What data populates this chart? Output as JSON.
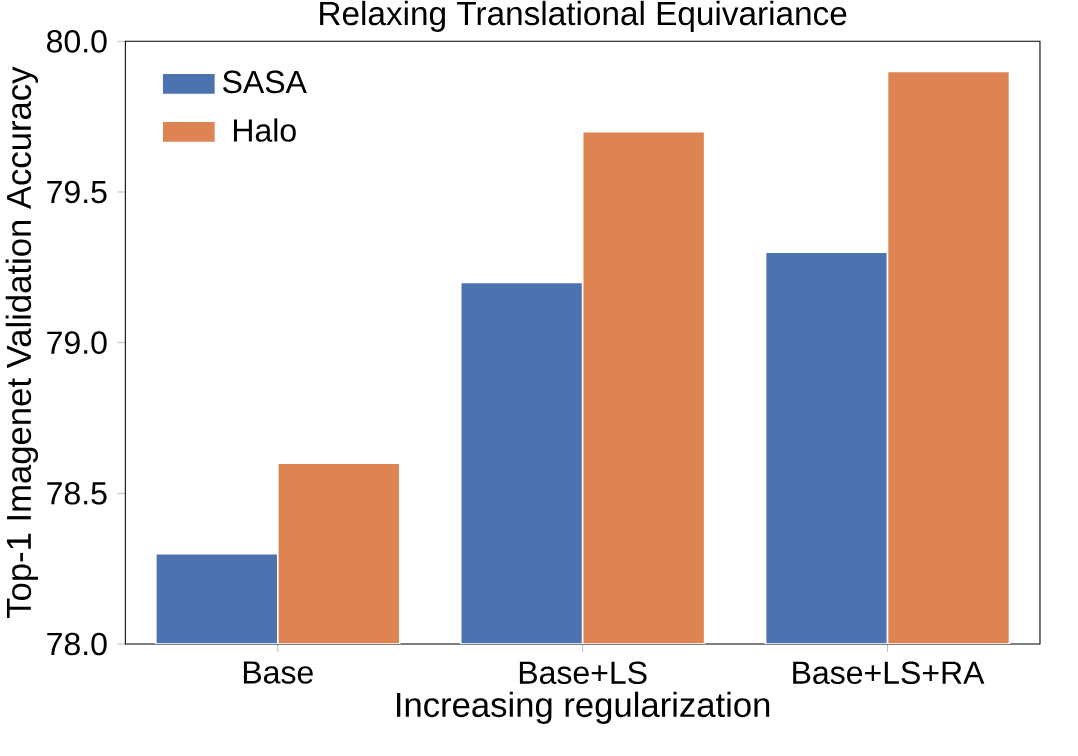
{
  "chart_data": {
    "type": "bar",
    "title": "Relaxing Translational Equivariance",
    "xlabel": "Increasing regularization",
    "ylabel": "Top-1 Imagenet Validation Accuracy",
    "categories": [
      "Base",
      "Base+LS",
      "Base+LS+RA"
    ],
    "series": [
      {
        "name": "SASA",
        "color": "#4c72b0",
        "values": [
          78.3,
          79.2,
          79.3
        ]
      },
      {
        "name": "Halo",
        "color": "#dd8452",
        "values": [
          78.6,
          79.7,
          79.9
        ]
      }
    ],
    "ylim": [
      78.0,
      80.0
    ],
    "yticks": [
      {
        "value": 78.0,
        "label": "78.0"
      },
      {
        "value": 78.5,
        "label": "78.5"
      },
      {
        "value": 79.0,
        "label": "79.0"
      },
      {
        "value": 79.5,
        "label": "79.5"
      },
      {
        "value": 80.0,
        "label": "80.0"
      }
    ],
    "legend": "top left",
    "grid": false
  }
}
